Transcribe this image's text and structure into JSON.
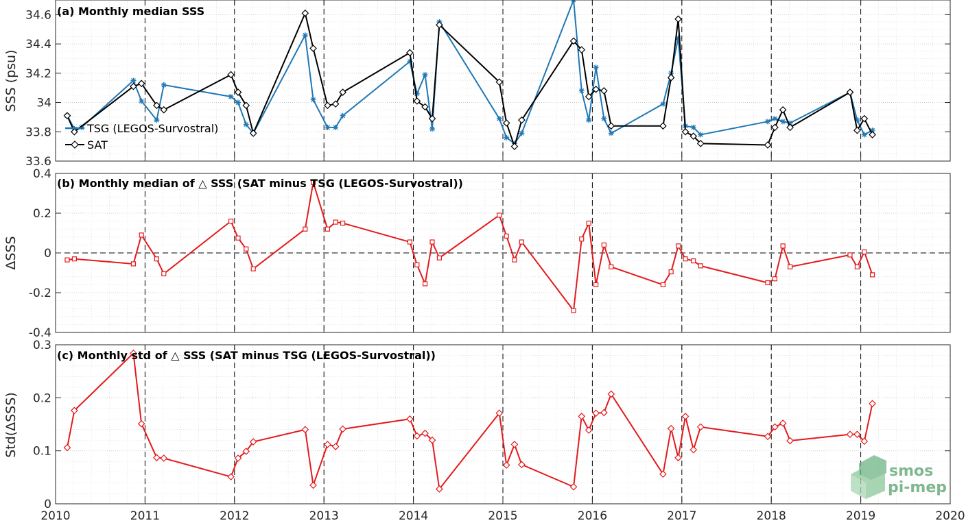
{
  "chart_data": [
    {
      "type": "line",
      "title": "(a) Monthly median SSS",
      "xlabel": "",
      "ylabel": "SSS (psu)",
      "xlim": [
        2010,
        2020
      ],
      "ylim": [
        33.6,
        34.7
      ],
      "yticks": [
        33.6,
        33.8,
        34,
        34.2,
        34.4,
        34.6
      ],
      "ytick_labels": [
        "33.6",
        "33.8",
        "34",
        "34.2",
        "34.4",
        "34.6"
      ],
      "grid": true,
      "legend_position": "left",
      "series": [
        {
          "name": "TSG (LEGOS-Survostral)",
          "color": "#1f77b4",
          "marker": "star",
          "x": [
            2010.13,
            2010.21,
            2010.29,
            2010.87,
            2010.96,
            2011.13,
            2011.21,
            2011.96,
            2012.04,
            2012.13,
            2012.21,
            2012.79,
            2012.88,
            2013.04,
            2013.13,
            2013.21,
            2013.96,
            2014.04,
            2014.13,
            2014.21,
            2014.29,
            2014.96,
            2015.04,
            2015.13,
            2015.21,
            2015.79,
            2015.88,
            2015.96,
            2016.04,
            2016.13,
            2016.21,
            2016.79,
            2016.88,
            2016.96,
            2017.04,
            2017.13,
            2017.21,
            2017.96,
            2018.04,
            2018.13,
            2018.21,
            2018.88,
            2018.96,
            2019.04,
            2019.13
          ],
          "y": [
            33.91,
            33.82,
            33.83,
            34.15,
            34.01,
            33.88,
            34.12,
            34.04,
            34.0,
            33.85,
            33.79,
            34.46,
            34.02,
            33.83,
            33.83,
            33.91,
            34.28,
            34.06,
            34.19,
            33.82,
            34.55,
            33.89,
            33.76,
            33.72,
            33.79,
            34.7,
            34.08,
            33.88,
            34.24,
            33.89,
            33.79,
            33.99,
            34.2,
            34.44,
            33.84,
            33.83,
            33.78,
            33.87,
            33.89,
            33.87,
            33.86,
            34.07,
            33.88,
            33.78,
            33.81
          ]
        },
        {
          "name": "SAT",
          "color": "#000000",
          "marker": "diamond",
          "x": [
            2010.13,
            2010.21,
            2010.87,
            2010.96,
            2011.13,
            2011.21,
            2011.96,
            2012.04,
            2012.13,
            2012.21,
            2012.79,
            2012.88,
            2013.04,
            2013.13,
            2013.21,
            2013.96,
            2014.04,
            2014.13,
            2014.21,
            2014.29,
            2014.96,
            2015.04,
            2015.13,
            2015.21,
            2015.79,
            2015.88,
            2015.96,
            2016.04,
            2016.13,
            2016.21,
            2016.79,
            2016.88,
            2016.96,
            2017.04,
            2017.13,
            2017.21,
            2017.96,
            2018.04,
            2018.13,
            2018.21,
            2018.88,
            2018.96,
            2019.04,
            2019.13
          ],
          "y": [
            33.91,
            33.8,
            34.11,
            34.13,
            33.98,
            33.95,
            34.19,
            34.07,
            33.98,
            33.79,
            34.61,
            34.37,
            33.98,
            33.99,
            34.07,
            34.34,
            34.01,
            33.97,
            33.89,
            34.53,
            34.14,
            33.86,
            33.7,
            33.88,
            34.42,
            34.36,
            34.04,
            34.09,
            34.08,
            33.84,
            33.84,
            34.17,
            34.57,
            33.8,
            33.77,
            33.72,
            33.71,
            33.83,
            33.95,
            33.83,
            34.07,
            33.81,
            33.89,
            33.78
          ]
        }
      ]
    },
    {
      "type": "line",
      "title": "(b) Monthly median of △ SSS (SAT minus TSG (LEGOS-Survostral))",
      "xlabel": "",
      "ylabel": "ΔSSS",
      "xlim": [
        2010,
        2020
      ],
      "ylim": [
        -0.4,
        0.4
      ],
      "yticks": [
        -0.4,
        -0.2,
        0,
        0.2,
        0.4
      ],
      "ytick_labels": [
        "-0.4",
        "-0.2",
        "0",
        "0.2",
        "0.4"
      ],
      "grid": true,
      "zero_line": true,
      "series": [
        {
          "name": "",
          "color": "#e41a1c",
          "marker": "square",
          "x": [
            2010.13,
            2010.21,
            2010.87,
            2010.96,
            2011.13,
            2011.21,
            2011.96,
            2012.04,
            2012.13,
            2012.21,
            2012.79,
            2012.88,
            2013.04,
            2013.13,
            2013.21,
            2013.96,
            2014.04,
            2014.13,
            2014.21,
            2014.29,
            2014.96,
            2015.04,
            2015.13,
            2015.21,
            2015.79,
            2015.88,
            2015.96,
            2016.04,
            2016.13,
            2016.21,
            2016.79,
            2016.88,
            2016.96,
            2017.04,
            2017.13,
            2017.21,
            2017.96,
            2018.04,
            2018.13,
            2018.21,
            2018.88,
            2018.96,
            2019.04,
            2019.13
          ],
          "y": [
            -0.035,
            -0.03,
            -0.055,
            0.09,
            -0.03,
            -0.105,
            0.16,
            0.075,
            0.02,
            -0.08,
            0.12,
            0.355,
            0.12,
            0.155,
            0.15,
            0.055,
            -0.06,
            -0.155,
            0.055,
            -0.025,
            0.19,
            0.085,
            -0.035,
            0.055,
            -0.29,
            0.07,
            0.15,
            -0.16,
            0.04,
            -0.07,
            -0.16,
            -0.095,
            0.035,
            -0.03,
            -0.04,
            -0.065,
            -0.15,
            -0.13,
            0.035,
            -0.07,
            -0.01,
            -0.07,
            0.005,
            -0.11
          ]
        }
      ]
    },
    {
      "type": "line",
      "title": "(c) Monthly std of △ SSS (SAT minus TSG (LEGOS-Survostral))",
      "xlabel": "",
      "ylabel": "Std(ΔSSS)",
      "xlim": [
        2010,
        2020
      ],
      "ylim": [
        0,
        0.3
      ],
      "yticks": [
        0,
        0.1,
        0.2,
        0.3
      ],
      "ytick_labels": [
        "0",
        "0.1",
        "0.2",
        "0.3"
      ],
      "xticks": [
        2010,
        2011,
        2012,
        2013,
        2014,
        2015,
        2016,
        2017,
        2018,
        2019,
        2020
      ],
      "xtick_labels": [
        "2010",
        "2011",
        "2012",
        "2013",
        "2014",
        "2015",
        "2016",
        "2017",
        "2018",
        "2019",
        "2020"
      ],
      "grid": true,
      "series": [
        {
          "name": "",
          "color": "#e41a1c",
          "marker": "diamond",
          "x": [
            2010.13,
            2010.21,
            2010.87,
            2010.96,
            2011.13,
            2011.21,
            2011.96,
            2012.04,
            2012.13,
            2012.21,
            2012.79,
            2012.88,
            2013.04,
            2013.13,
            2013.21,
            2013.96,
            2014.04,
            2014.13,
            2014.21,
            2014.29,
            2014.96,
            2015.04,
            2015.13,
            2015.21,
            2015.79,
            2015.88,
            2015.96,
            2016.04,
            2016.13,
            2016.21,
            2016.79,
            2016.88,
            2016.96,
            2017.04,
            2017.13,
            2017.21,
            2017.96,
            2018.04,
            2018.13,
            2018.21,
            2018.88,
            2018.96,
            2019.04,
            2019.13
          ],
          "y": [
            0.106,
            0.176,
            0.284,
            0.151,
            0.087,
            0.086,
            0.051,
            0.086,
            0.099,
            0.117,
            0.14,
            0.035,
            0.112,
            0.108,
            0.141,
            0.16,
            0.128,
            0.133,
            0.12,
            0.028,
            0.171,
            0.073,
            0.112,
            0.074,
            0.032,
            0.165,
            0.139,
            0.171,
            0.172,
            0.207,
            0.056,
            0.142,
            0.087,
            0.165,
            0.102,
            0.145,
            0.127,
            0.145,
            0.152,
            0.119,
            0.131,
            0.131,
            0.118,
            0.189
          ]
        }
      ]
    }
  ],
  "logo": {
    "line1": "smos",
    "line2": "pi-mep"
  }
}
